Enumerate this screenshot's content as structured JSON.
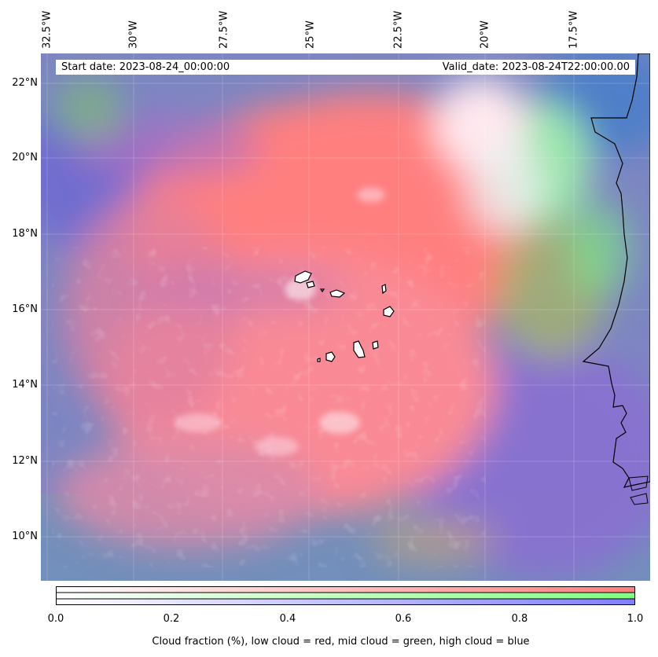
{
  "map": {
    "longitude_labels": [
      "32.5°W",
      "30°W",
      "27.5°W",
      "25°W",
      "22.5°W",
      "20°W",
      "17.5°W"
    ],
    "latitude_labels": [
      "22°N",
      "20°N",
      "18°N",
      "16°N",
      "14°N",
      "12°N",
      "10°N"
    ],
    "start_date": "Start date: 2023-08-24_00:00:00",
    "valid_date": "Valid_date: 2023-08-24T22:00:00.00",
    "layers": {
      "low_cloud_color": "#ff7f7f",
      "mid_cloud_color": "#80ff80",
      "high_cloud_color": "#7f7fff"
    },
    "coastline_color": "#000000",
    "islands": "Cape Verde",
    "features": [
      "coastline",
      "islands",
      "gridlines"
    ]
  },
  "colorbar": {
    "ticks": [
      "0.0",
      "0.2",
      "0.4",
      "0.6",
      "0.8",
      "1.0"
    ],
    "label": "Cloud fraction (%), low cloud = red, mid cloud = green, high cloud = blue",
    "rows": [
      {
        "name": "low",
        "color": "#ff7f7f"
      },
      {
        "name": "mid",
        "color": "#80ff80"
      },
      {
        "name": "high",
        "color": "#7f7fff"
      }
    ]
  }
}
